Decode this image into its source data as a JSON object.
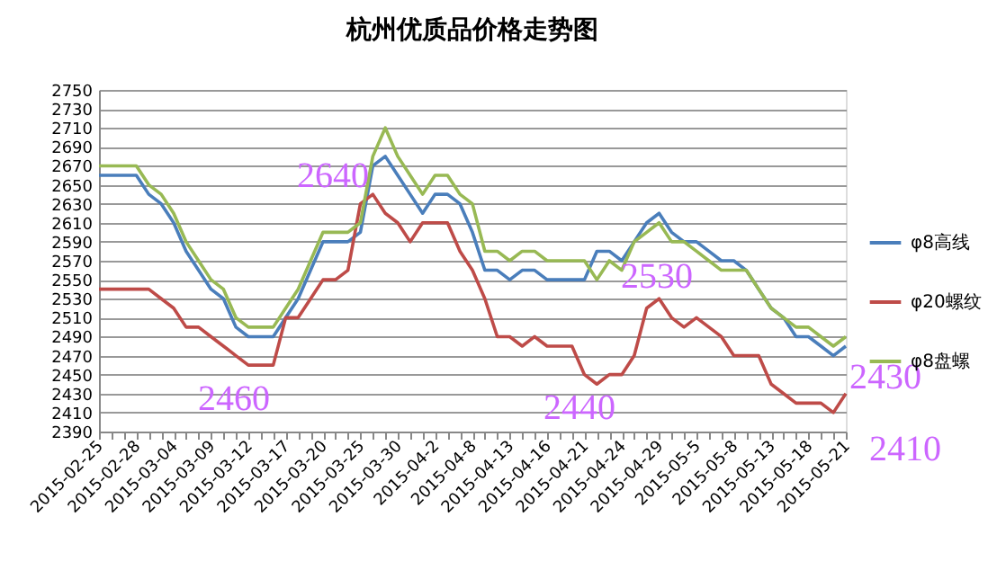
{
  "chart_data": {
    "type": "line",
    "title": "杭州优质品价格走势图",
    "categories": [
      "2015-02-25",
      null,
      null,
      "2015-02-28",
      null,
      null,
      "2015-03-04",
      null,
      null,
      "2015-03-09",
      null,
      null,
      "2015-03-12",
      null,
      null,
      "2015-03-17",
      null,
      null,
      "2015-03-20",
      null,
      null,
      "2015-03-25",
      null,
      null,
      "2015-03-30",
      null,
      null,
      "2015-04-2",
      null,
      null,
      "2015-04-8",
      null,
      null,
      "2015-04-13",
      null,
      null,
      "2015-04-16",
      null,
      null,
      "2015-04-21",
      null,
      null,
      "2015-04-24",
      null,
      null,
      "2015-04-29",
      null,
      null,
      "2015-05-5",
      null,
      null,
      "2015-05-8",
      null,
      null,
      "2015-05-13",
      null,
      null,
      "2015-05-18",
      null,
      null,
      "2015-05-21"
    ],
    "series": [
      {
        "name": "φ8高线",
        "color": "#4a7ebb",
        "values": [
          2660,
          2660,
          2660,
          2660,
          2640,
          2630,
          2610,
          2580,
          2560,
          2540,
          2530,
          2500,
          2490,
          2490,
          2490,
          2510,
          2530,
          2560,
          2590,
          2590,
          2590,
          2600,
          2670,
          2680,
          2660,
          2640,
          2620,
          2640,
          2640,
          2630,
          2600,
          2560,
          2560,
          2550,
          2560,
          2560,
          2550,
          2550,
          2550,
          2550,
          2580,
          2580,
          2570,
          2590,
          2610,
          2620,
          2600,
          2590,
          2590,
          2580,
          2570,
          2570,
          2560,
          2540,
          2520,
          2510,
          2490,
          2490,
          2480,
          2470,
          2480
        ]
      },
      {
        "name": "φ20螺纹",
        "color": "#be4b48",
        "values": [
          2540,
          2540,
          2540,
          2540,
          2540,
          2530,
          2520,
          2500,
          2500,
          2490,
          2480,
          2470,
          2460,
          2460,
          2460,
          2510,
          2510,
          2530,
          2550,
          2550,
          2560,
          2630,
          2640,
          2620,
          2610,
          2590,
          2610,
          2610,
          2610,
          2580,
          2560,
          2530,
          2490,
          2490,
          2480,
          2490,
          2480,
          2480,
          2480,
          2450,
          2440,
          2450,
          2450,
          2470,
          2520,
          2530,
          2510,
          2500,
          2510,
          2500,
          2490,
          2470,
          2470,
          2470,
          2440,
          2430,
          2420,
          2420,
          2420,
          2410,
          2430
        ]
      },
      {
        "name": "φ8盘螺",
        "color": "#98b954",
        "values": [
          2670,
          2670,
          2670,
          2670,
          2650,
          2640,
          2620,
          2590,
          2570,
          2550,
          2540,
          2510,
          2500,
          2500,
          2500,
          2520,
          2540,
          2570,
          2600,
          2600,
          2600,
          2610,
          2680,
          2710,
          2680,
          2660,
          2640,
          2660,
          2660,
          2640,
          2630,
          2580,
          2580,
          2570,
          2580,
          2580,
          2570,
          2570,
          2570,
          2570,
          2550,
          2570,
          2560,
          2590,
          2600,
          2610,
          2590,
          2590,
          2580,
          2570,
          2560,
          2560,
          2560,
          2540,
          2520,
          2510,
          2500,
          2500,
          2490,
          2480,
          2490
        ]
      }
    ],
    "ylim": [
      2390,
      2750
    ],
    "yticks": [
      2390,
      2410,
      2430,
      2450,
      2470,
      2490,
      2510,
      2530,
      2550,
      2570,
      2590,
      2610,
      2630,
      2650,
      2670,
      2690,
      2710,
      2730,
      2750
    ],
    "grid": "y",
    "legend": "right",
    "marker": "none",
    "line_style": "solid",
    "annotations": [
      "2640",
      "2460",
      "2440",
      "2530",
      "2410",
      "2430"
    ]
  }
}
